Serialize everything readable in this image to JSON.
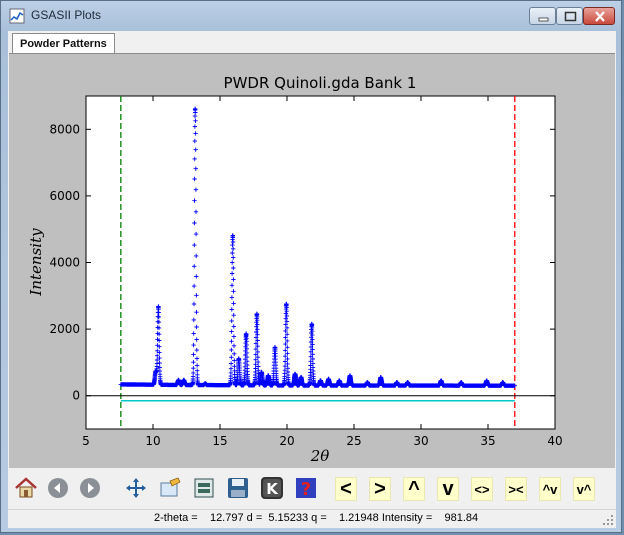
{
  "window": {
    "title": "GSASII Plots"
  },
  "tabs": [
    {
      "label": "Powder Patterns"
    }
  ],
  "chart_data": {
    "type": "scatter",
    "title": "PWDR Quinoli.gda Bank 1",
    "xlabel": "2θ",
    "ylabel": "Intensity",
    "xlim": [
      5,
      40
    ],
    "ylim": [
      -1000,
      9000
    ],
    "xticks": [
      5,
      10,
      15,
      20,
      25,
      30,
      35,
      40
    ],
    "yticks": [
      0,
      2000,
      4000,
      6000,
      8000
    ],
    "grid": false,
    "marker": "+",
    "color": "#0000ff",
    "limits": {
      "lower": 7.6,
      "upper": 37.0,
      "lower_color": "#008000",
      "upper_color": "#ff0000"
    },
    "background_level": 300,
    "difference_level": -150,
    "difference_color": "#00c8c8",
    "zero_line": 0,
    "peaks": [
      {
        "x": 10.2,
        "y": 700
      },
      {
        "x": 10.4,
        "y": 2650
      },
      {
        "x": 11.9,
        "y": 450
      },
      {
        "x": 12.3,
        "y": 450
      },
      {
        "x": 13.15,
        "y": 8600
      },
      {
        "x": 13.9,
        "y": 350
      },
      {
        "x": 15.95,
        "y": 4800
      },
      {
        "x": 16.4,
        "y": 1100
      },
      {
        "x": 16.95,
        "y": 1850
      },
      {
        "x": 17.75,
        "y": 2450
      },
      {
        "x": 18.1,
        "y": 700
      },
      {
        "x": 18.6,
        "y": 600
      },
      {
        "x": 19.1,
        "y": 1450
      },
      {
        "x": 19.95,
        "y": 2750
      },
      {
        "x": 20.6,
        "y": 650
      },
      {
        "x": 21.05,
        "y": 550
      },
      {
        "x": 21.85,
        "y": 2150
      },
      {
        "x": 22.5,
        "y": 450
      },
      {
        "x": 23.1,
        "y": 500
      },
      {
        "x": 23.9,
        "y": 450
      },
      {
        "x": 24.7,
        "y": 600
      },
      {
        "x": 26.0,
        "y": 400
      },
      {
        "x": 27.0,
        "y": 550
      },
      {
        "x": 28.2,
        "y": 400
      },
      {
        "x": 29.0,
        "y": 400
      },
      {
        "x": 31.5,
        "y": 450
      },
      {
        "x": 33.0,
        "y": 400
      },
      {
        "x": 34.9,
        "y": 450
      },
      {
        "x": 36.1,
        "y": 400
      }
    ]
  },
  "toolbar": {
    "buttons": [
      {
        "name": "home-button",
        "icon": "home-icon"
      },
      {
        "name": "back-button",
        "icon": "back-arrow-icon"
      },
      {
        "name": "forward-button",
        "icon": "forward-arrow-icon"
      },
      {
        "name": "pan-button",
        "icon": "move-arrows-icon"
      },
      {
        "name": "zoom-button",
        "icon": "zoom-rect-icon"
      },
      {
        "name": "configure-button",
        "icon": "configure-subplots-icon"
      },
      {
        "name": "save-button",
        "icon": "floppy-disk-icon"
      },
      {
        "name": "key-button",
        "icon": "k-key-icon"
      },
      {
        "name": "help-button",
        "icon": "question-mark-icon"
      }
    ],
    "text_buttons": [
      {
        "name": "shift-left-button",
        "label": "<"
      },
      {
        "name": "shift-right-button",
        "label": ">"
      },
      {
        "name": "shift-up-button",
        "label": "^"
      },
      {
        "name": "shift-down-button",
        "label": "v"
      },
      {
        "name": "expand-x-button",
        "label": "<>"
      },
      {
        "name": "shrink-x-button",
        "label": "><"
      },
      {
        "name": "expand-y-button",
        "label": "^v"
      },
      {
        "name": "shrink-y-button",
        "label": "v^"
      }
    ]
  },
  "status": {
    "text": "2-theta =    12.797 d =  5.15233 q =    1.21948 Intensity =    981.84"
  }
}
